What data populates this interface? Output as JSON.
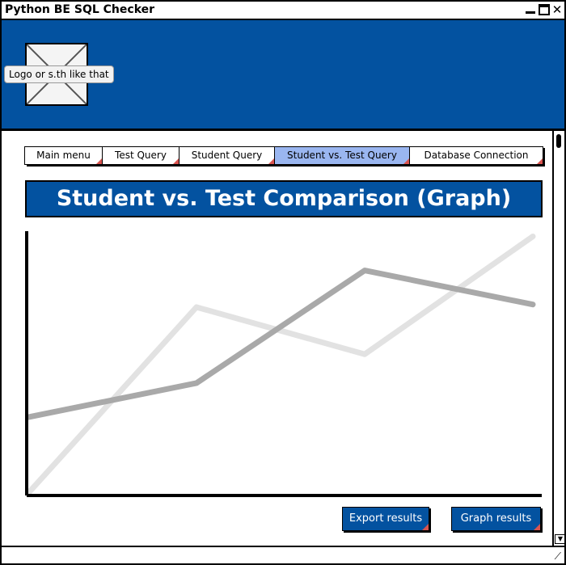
{
  "window": {
    "title": "Python BE SQL Checker",
    "close_glyph": "✕"
  },
  "header": {
    "logo_label": "Logo or s.th like that",
    "bg_color": "#0352a0"
  },
  "tabs": [
    {
      "label": "Main menu",
      "active": false
    },
    {
      "label": "Test Query",
      "active": false
    },
    {
      "label": "Student Query",
      "active": false
    },
    {
      "label": "Student vs. Test Query",
      "active": true
    },
    {
      "label": "Database Connection",
      "active": false
    }
  ],
  "page_title": "Student vs. Test Comparison (Graph)",
  "chart_data": {
    "type": "line",
    "x": [
      0,
      1,
      2,
      3
    ],
    "series": [
      {
        "color": "#e2e2e2",
        "values": [
          0,
          0.71,
          0.53,
          0.98
        ]
      },
      {
        "color": "#a9a9a9",
        "values": [
          0.29,
          0.42,
          0.85,
          0.72
        ]
      }
    ],
    "ylim": [
      0,
      1
    ],
    "grid": false
  },
  "buttons": {
    "export": "Export results",
    "graph": "Graph results"
  }
}
